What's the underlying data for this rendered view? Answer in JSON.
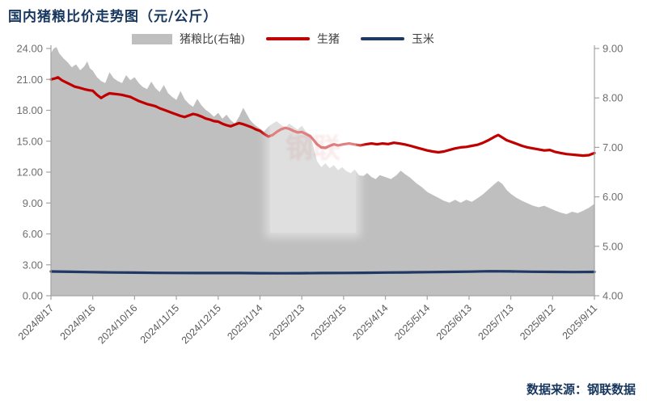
{
  "title": "国内猪粮比价走势图（元/公斤）",
  "source": "数据来源：钢联数据",
  "watermark_text": "钢联",
  "colors": {
    "title": "#17375e",
    "ratio_area": "#bfbfbf",
    "pig_line": "#c00000",
    "corn_line": "#1f3864",
    "axis": "#a3a3a3",
    "tick_label": "#6e6e6e",
    "x_label": "#595959"
  },
  "legend": [
    {
      "label": "猪粮比(右轴)",
      "type": "area",
      "color": "#bfbfbf"
    },
    {
      "label": "生猪",
      "type": "line",
      "color": "#c00000"
    },
    {
      "label": "玉米",
      "type": "line",
      "color": "#1f3864"
    }
  ],
  "chart_data": {
    "type": "area+line",
    "title": "国内猪粮比价走势图（元/公斤）",
    "x_unit": "days since 2024/8/17",
    "x_range": [
      0,
      390
    ],
    "x_tick_days": [
      0,
      30,
      60,
      90,
      120,
      150,
      180,
      210,
      240,
      270,
      300,
      330,
      360,
      390
    ],
    "x_tick_labels": [
      "2024/8/17",
      "2024/9/16",
      "2024/10/16",
      "2024/11/15",
      "2024/12/15",
      "2025/1/14",
      "2025/2/13",
      "2025/3/15",
      "2025/4/14",
      "2025/5/14",
      "2025/6/13",
      "2025/7/13",
      "2025/8/12",
      "2025/9/11"
    ],
    "ylim_left": [
      0,
      24
    ],
    "yticks_left": [
      "0.00",
      "3.00",
      "6.00",
      "9.00",
      "12.00",
      "15.00",
      "18.00",
      "21.00",
      "24.00"
    ],
    "ylim_right": [
      4,
      9
    ],
    "yticks_right": [
      "4.00",
      "5.00",
      "6.00",
      "7.00",
      "8.00",
      "9.00"
    ],
    "grid": false,
    "legend_position": "top",
    "series": [
      {
        "name": "猪粮比",
        "axis": "right",
        "style": "area",
        "color": "#bfbfbf",
        "points": [
          [
            0,
            8.9
          ],
          [
            2,
            9.0
          ],
          [
            4,
            9.03
          ],
          [
            6,
            8.9
          ],
          [
            9,
            8.8
          ],
          [
            12,
            8.72
          ],
          [
            15,
            8.62
          ],
          [
            18,
            8.68
          ],
          [
            21,
            8.56
          ],
          [
            24,
            8.64
          ],
          [
            26,
            8.74
          ],
          [
            28,
            8.6
          ],
          [
            30,
            8.55
          ],
          [
            33,
            8.42
          ],
          [
            36,
            8.34
          ],
          [
            39,
            8.3
          ],
          [
            42,
            8.52
          ],
          [
            45,
            8.4
          ],
          [
            48,
            8.34
          ],
          [
            51,
            8.3
          ],
          [
            54,
            8.46
          ],
          [
            57,
            8.36
          ],
          [
            60,
            8.42
          ],
          [
            63,
            8.3
          ],
          [
            66,
            8.22
          ],
          [
            69,
            8.18
          ],
          [
            72,
            8.33
          ],
          [
            75,
            8.2
          ],
          [
            78,
            8.12
          ],
          [
            81,
            8.26
          ],
          [
            84,
            8.1
          ],
          [
            87,
            8.02
          ],
          [
            90,
            7.96
          ],
          [
            93,
            8.14
          ],
          [
            96,
            7.97
          ],
          [
            99,
            7.88
          ],
          [
            102,
            7.82
          ],
          [
            105,
            7.98
          ],
          [
            108,
            7.85
          ],
          [
            111,
            7.76
          ],
          [
            114,
            7.7
          ],
          [
            117,
            7.62
          ],
          [
            120,
            7.7
          ],
          [
            123,
            7.58
          ],
          [
            126,
            7.66
          ],
          [
            129,
            7.55
          ],
          [
            132,
            7.48
          ],
          [
            135,
            7.62
          ],
          [
            138,
            7.8
          ],
          [
            140,
            7.7
          ],
          [
            143,
            7.55
          ],
          [
            146,
            7.46
          ],
          [
            150,
            7.38
          ],
          [
            153,
            7.32
          ],
          [
            156,
            7.42
          ],
          [
            159,
            7.48
          ],
          [
            162,
            7.53
          ],
          [
            165,
            7.46
          ],
          [
            168,
            7.4
          ],
          [
            171,
            7.48
          ],
          [
            174,
            7.42
          ],
          [
            177,
            7.36
          ],
          [
            180,
            7.44
          ],
          [
            183,
            7.32
          ],
          [
            186,
            7.26
          ],
          [
            188,
            7.05
          ],
          [
            191,
            6.72
          ],
          [
            194,
            6.6
          ],
          [
            197,
            6.68
          ],
          [
            200,
            6.58
          ],
          [
            203,
            6.64
          ],
          [
            206,
            6.54
          ],
          [
            209,
            6.6
          ],
          [
            212,
            6.52
          ],
          [
            215,
            6.48
          ],
          [
            218,
            6.55
          ],
          [
            221,
            6.44
          ],
          [
            224,
            6.42
          ],
          [
            227,
            6.48
          ],
          [
            230,
            6.4
          ],
          [
            233,
            6.36
          ],
          [
            236,
            6.44
          ],
          [
            240,
            6.4
          ],
          [
            244,
            6.36
          ],
          [
            248,
            6.44
          ],
          [
            251,
            6.53
          ],
          [
            254,
            6.46
          ],
          [
            258,
            6.38
          ],
          [
            262,
            6.28
          ],
          [
            266,
            6.2
          ],
          [
            270,
            6.1
          ],
          [
            274,
            6.04
          ],
          [
            278,
            5.98
          ],
          [
            282,
            5.92
          ],
          [
            286,
            5.88
          ],
          [
            290,
            5.94
          ],
          [
            294,
            5.88
          ],
          [
            298,
            5.94
          ],
          [
            302,
            5.9
          ],
          [
            306,
            5.97
          ],
          [
            310,
            6.05
          ],
          [
            314,
            6.15
          ],
          [
            318,
            6.25
          ],
          [
            321,
            6.32
          ],
          [
            324,
            6.26
          ],
          [
            327,
            6.14
          ],
          [
            330,
            6.06
          ],
          [
            334,
            5.98
          ],
          [
            338,
            5.92
          ],
          [
            342,
            5.87
          ],
          [
            346,
            5.82
          ],
          [
            350,
            5.79
          ],
          [
            354,
            5.82
          ],
          [
            358,
            5.77
          ],
          [
            362,
            5.72
          ],
          [
            366,
            5.68
          ],
          [
            370,
            5.65
          ],
          [
            374,
            5.7
          ],
          [
            378,
            5.67
          ],
          [
            382,
            5.72
          ],
          [
            386,
            5.78
          ],
          [
            390,
            5.86
          ]
        ]
      },
      {
        "name": "生猪",
        "axis": "left",
        "style": "line",
        "color": "#c00000",
        "points": [
          [
            0,
            21.0
          ],
          [
            3,
            21.1
          ],
          [
            5,
            21.2
          ],
          [
            8,
            20.9
          ],
          [
            11,
            20.7
          ],
          [
            14,
            20.5
          ],
          [
            17,
            20.3
          ],
          [
            20,
            20.2
          ],
          [
            24,
            20.05
          ],
          [
            27,
            19.95
          ],
          [
            30,
            19.9
          ],
          [
            33,
            19.5
          ],
          [
            36,
            19.2
          ],
          [
            39,
            19.45
          ],
          [
            42,
            19.65
          ],
          [
            45,
            19.6
          ],
          [
            48,
            19.55
          ],
          [
            51,
            19.5
          ],
          [
            54,
            19.4
          ],
          [
            57,
            19.3
          ],
          [
            60,
            19.1
          ],
          [
            63,
            18.9
          ],
          [
            66,
            18.75
          ],
          [
            69,
            18.6
          ],
          [
            72,
            18.5
          ],
          [
            75,
            18.4
          ],
          [
            78,
            18.2
          ],
          [
            81,
            18.05
          ],
          [
            84,
            17.9
          ],
          [
            87,
            17.75
          ],
          [
            90,
            17.6
          ],
          [
            93,
            17.45
          ],
          [
            96,
            17.35
          ],
          [
            99,
            17.5
          ],
          [
            102,
            17.65
          ],
          [
            105,
            17.55
          ],
          [
            108,
            17.4
          ],
          [
            111,
            17.2
          ],
          [
            114,
            17.1
          ],
          [
            117,
            16.95
          ],
          [
            120,
            16.9
          ],
          [
            123,
            16.7
          ],
          [
            126,
            16.55
          ],
          [
            129,
            16.45
          ],
          [
            132,
            16.6
          ],
          [
            135,
            16.75
          ],
          [
            138,
            16.65
          ],
          [
            141,
            16.5
          ],
          [
            144,
            16.35
          ],
          [
            147,
            16.15
          ],
          [
            150,
            16.0
          ],
          [
            153,
            15.7
          ],
          [
            156,
            15.45
          ],
          [
            159,
            15.6
          ],
          [
            162,
            15.9
          ],
          [
            165,
            16.15
          ],
          [
            168,
            16.3
          ],
          [
            171,
            16.2
          ],
          [
            174,
            16.0
          ],
          [
            177,
            15.85
          ],
          [
            180,
            15.9
          ],
          [
            183,
            15.7
          ],
          [
            186,
            15.5
          ],
          [
            188,
            15.2
          ],
          [
            191,
            14.7
          ],
          [
            194,
            14.4
          ],
          [
            197,
            14.35
          ],
          [
            200,
            14.55
          ],
          [
            203,
            14.7
          ],
          [
            206,
            14.6
          ],
          [
            210,
            14.7
          ],
          [
            214,
            14.78
          ],
          [
            218,
            14.68
          ],
          [
            222,
            14.6
          ],
          [
            226,
            14.7
          ],
          [
            230,
            14.78
          ],
          [
            234,
            14.7
          ],
          [
            238,
            14.78
          ],
          [
            242,
            14.72
          ],
          [
            246,
            14.85
          ],
          [
            250,
            14.78
          ],
          [
            254,
            14.68
          ],
          [
            258,
            14.55
          ],
          [
            262,
            14.4
          ],
          [
            266,
            14.25
          ],
          [
            270,
            14.1
          ],
          [
            274,
            14.0
          ],
          [
            278,
            13.92
          ],
          [
            282,
            14.0
          ],
          [
            286,
            14.15
          ],
          [
            290,
            14.3
          ],
          [
            294,
            14.4
          ],
          [
            298,
            14.45
          ],
          [
            302,
            14.55
          ],
          [
            306,
            14.65
          ],
          [
            310,
            14.85
          ],
          [
            314,
            15.1
          ],
          [
            318,
            15.4
          ],
          [
            321,
            15.6
          ],
          [
            324,
            15.35
          ],
          [
            327,
            15.1
          ],
          [
            330,
            14.95
          ],
          [
            334,
            14.75
          ],
          [
            338,
            14.55
          ],
          [
            342,
            14.4
          ],
          [
            346,
            14.3
          ],
          [
            350,
            14.2
          ],
          [
            354,
            14.1
          ],
          [
            358,
            14.15
          ],
          [
            362,
            13.95
          ],
          [
            366,
            13.85
          ],
          [
            370,
            13.75
          ],
          [
            374,
            13.7
          ],
          [
            378,
            13.65
          ],
          [
            382,
            13.6
          ],
          [
            386,
            13.65
          ],
          [
            390,
            13.85
          ]
        ]
      },
      {
        "name": "玉米",
        "axis": "left",
        "style": "line",
        "color": "#1f3864",
        "points": [
          [
            0,
            2.35
          ],
          [
            15,
            2.32
          ],
          [
            30,
            2.29
          ],
          [
            45,
            2.26
          ],
          [
            60,
            2.24
          ],
          [
            75,
            2.22
          ],
          [
            90,
            2.21
          ],
          [
            105,
            2.2
          ],
          [
            120,
            2.2
          ],
          [
            135,
            2.2
          ],
          [
            150,
            2.19
          ],
          [
            165,
            2.18
          ],
          [
            180,
            2.19
          ],
          [
            195,
            2.2
          ],
          [
            210,
            2.21
          ],
          [
            225,
            2.23
          ],
          [
            240,
            2.25
          ],
          [
            255,
            2.27
          ],
          [
            270,
            2.29
          ],
          [
            285,
            2.31
          ],
          [
            300,
            2.34
          ],
          [
            315,
            2.38
          ],
          [
            330,
            2.36
          ],
          [
            345,
            2.33
          ],
          [
            360,
            2.31
          ],
          [
            375,
            2.3
          ],
          [
            390,
            2.31
          ]
        ]
      }
    ]
  }
}
